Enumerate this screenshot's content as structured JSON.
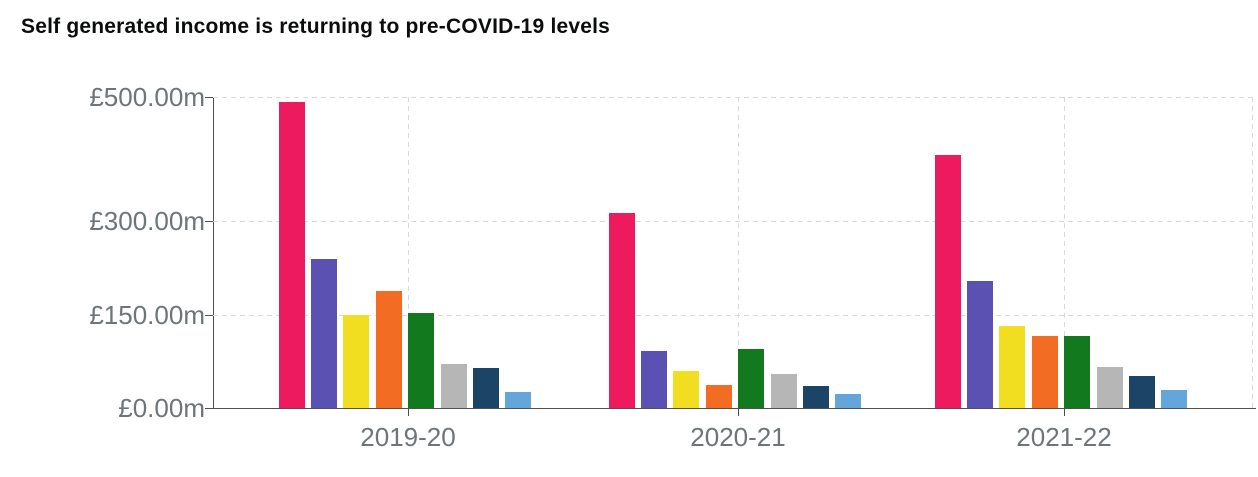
{
  "title": "Self generated income is returning to pre-COVID-19 levels",
  "chart_data": {
    "type": "bar",
    "title": "Self generated income is returning to pre-COVID-19 levels",
    "categories": [
      "2019-20",
      "2020-21",
      "2021-22"
    ],
    "series": [
      {
        "name": "pink",
        "color": "#ee1a60",
        "values": [
          492,
          314,
          407
        ]
      },
      {
        "name": "purple",
        "color": "#5b51b2",
        "values": [
          240,
          92,
          204
        ]
      },
      {
        "name": "yellow",
        "color": "#f2de20",
        "values": [
          150,
          60,
          132
        ]
      },
      {
        "name": "orange",
        "color": "#f36c23",
        "values": [
          188,
          37,
          116
        ]
      },
      {
        "name": "green",
        "color": "#13791f",
        "values": [
          152,
          95,
          116
        ]
      },
      {
        "name": "grey",
        "color": "#b5b6b5",
        "values": [
          70,
          54,
          66
        ]
      },
      {
        "name": "dark-blue",
        "color": "#1c4466",
        "values": [
          64,
          35,
          52
        ]
      },
      {
        "name": "light-blue",
        "color": "#64a5da",
        "values": [
          26,
          23,
          29
        ]
      }
    ],
    "y_axis": {
      "unit_prefix": "£",
      "unit_suffix": "m",
      "tick_labels": [
        "£500.00m",
        "£300.00m",
        "£150.00m",
        "£0.00m"
      ],
      "tick_values": [
        500,
        300,
        150,
        0
      ],
      "ylim": [
        0,
        500
      ]
    },
    "x_axis": {
      "tick_labels": [
        "2019-20",
        "2020-21",
        "2021-22"
      ]
    },
    "grid": "dashed horizontal at 500/300/150, dashed vertical at each category centre and right edge",
    "legend": "none"
  },
  "colors": {
    "background": "#ffffff",
    "title_text": "#0b0c0c",
    "axis_text": "#6e7578",
    "axis_line": "#4f4f4f",
    "gridline": "#d9d9d9"
  }
}
